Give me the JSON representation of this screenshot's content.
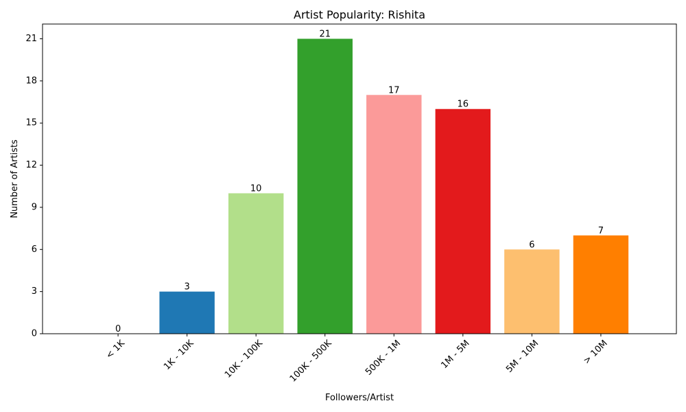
{
  "chart_data": {
    "type": "bar",
    "title": "Artist Popularity: Rishita",
    "xlabel": "Followers/Artist",
    "ylabel": "Number of Artists",
    "categories": [
      "< 1K",
      "1K - 10K",
      "10K - 100K",
      "100K - 500K",
      "500K - 1M",
      "1M - 5M",
      "5M - 10M",
      "> 10M"
    ],
    "values": [
      0,
      3,
      10,
      21,
      17,
      16,
      6,
      7
    ],
    "colors": [
      "#a6cee3",
      "#1f78b4",
      "#b2df8a",
      "#33a02c",
      "#fb9a99",
      "#e31a1c",
      "#fdbf6f",
      "#ff7f00"
    ],
    "ylim": [
      0,
      22.05
    ],
    "yticks": [
      0,
      3,
      6,
      9,
      12,
      15,
      18,
      21
    ],
    "grid": false,
    "legend": "none",
    "data_labels": true,
    "xtick_rotation": 45
  }
}
